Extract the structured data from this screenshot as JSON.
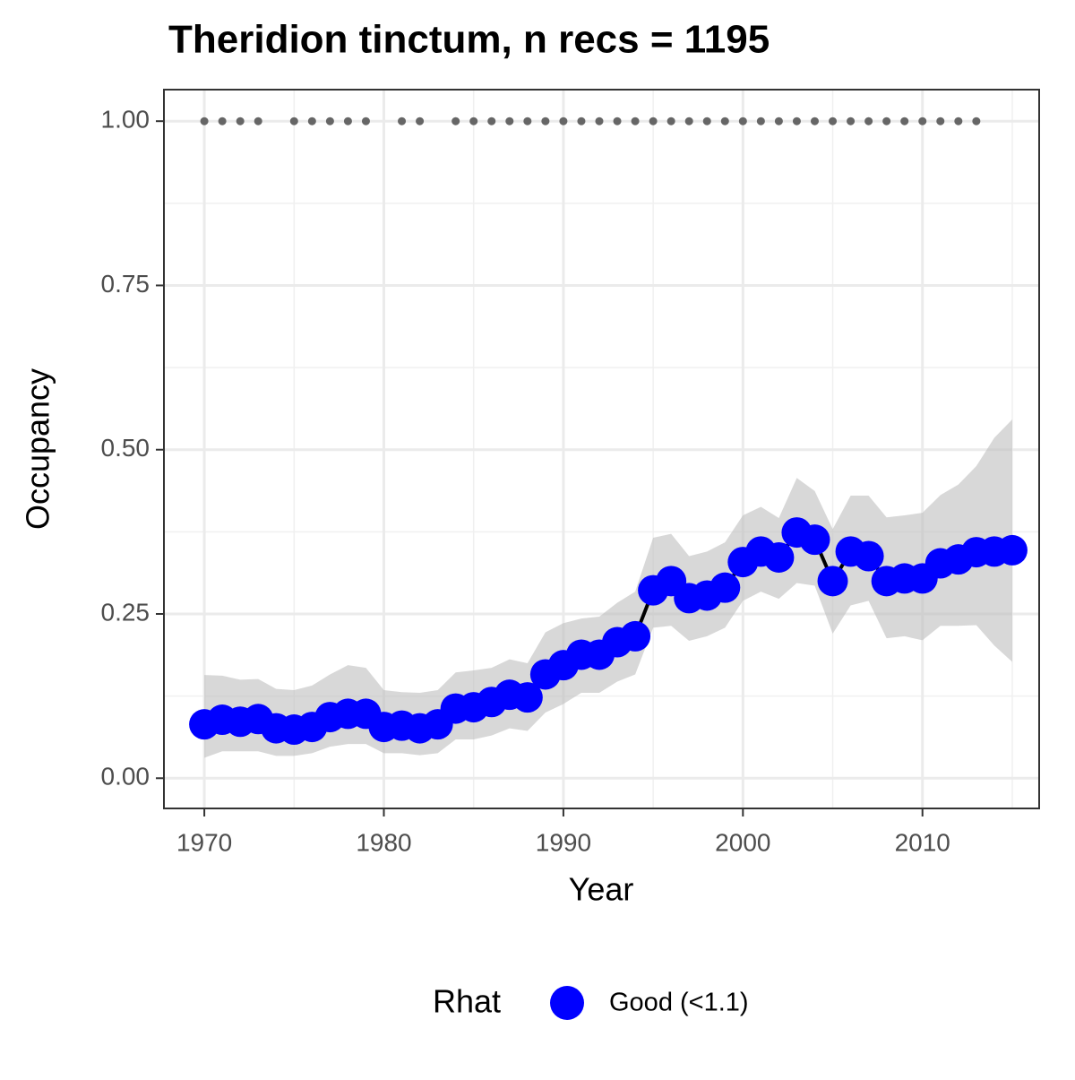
{
  "chart_data": {
    "type": "line",
    "title": "Theridion tinctum, n recs = 1195",
    "x_label": "Year",
    "y_label": "Occupancy",
    "x": [
      1970,
      1971,
      1972,
      1973,
      1974,
      1975,
      1976,
      1977,
      1978,
      1979,
      1980,
      1981,
      1982,
      1983,
      1984,
      1985,
      1986,
      1987,
      1988,
      1989,
      1990,
      1991,
      1992,
      1993,
      1994,
      1995,
      1996,
      1997,
      1998,
      1999,
      2000,
      2001,
      2002,
      2003,
      2004,
      2005,
      2006,
      2007,
      2008,
      2009,
      2010,
      2011,
      2012,
      2013,
      2014,
      2015
    ],
    "series": [
      {
        "name": "Good (<1.1)",
        "color": "#0000ff",
        "line_color": "#000000",
        "values": [
          0.082,
          0.089,
          0.086,
          0.09,
          0.076,
          0.074,
          0.078,
          0.093,
          0.098,
          0.098,
          0.078,
          0.08,
          0.076,
          0.082,
          0.106,
          0.108,
          0.116,
          0.127,
          0.123,
          0.158,
          0.172,
          0.188,
          0.188,
          0.207,
          0.216,
          0.286,
          0.3,
          0.274,
          0.278,
          0.29,
          0.329,
          0.345,
          0.336,
          0.374,
          0.363,
          0.3,
          0.345,
          0.338,
          0.3,
          0.304,
          0.304,
          0.327,
          0.333,
          0.344,
          0.345,
          0.347
        ],
        "upper": [
          0.157,
          0.156,
          0.15,
          0.151,
          0.136,
          0.134,
          0.141,
          0.158,
          0.172,
          0.168,
          0.134,
          0.131,
          0.13,
          0.134,
          0.161,
          0.164,
          0.168,
          0.181,
          0.175,
          0.222,
          0.236,
          0.243,
          0.246,
          0.267,
          0.284,
          0.366,
          0.372,
          0.338,
          0.345,
          0.359,
          0.4,
          0.413,
          0.396,
          0.457,
          0.437,
          0.379,
          0.43,
          0.43,
          0.397,
          0.4,
          0.404,
          0.431,
          0.447,
          0.475,
          0.518,
          0.546
        ],
        "lower": [
          0.031,
          0.041,
          0.041,
          0.041,
          0.034,
          0.034,
          0.038,
          0.048,
          0.052,
          0.052,
          0.038,
          0.038,
          0.035,
          0.038,
          0.059,
          0.059,
          0.065,
          0.076,
          0.072,
          0.1,
          0.113,
          0.13,
          0.13,
          0.147,
          0.158,
          0.229,
          0.232,
          0.209,
          0.216,
          0.229,
          0.27,
          0.284,
          0.273,
          0.297,
          0.293,
          0.22,
          0.263,
          0.27,
          0.213,
          0.216,
          0.21,
          0.232,
          0.232,
          0.233,
          0.202,
          0.177
        ]
      }
    ],
    "band_color": "#bebebe",
    "records": {
      "color": "#666666",
      "x": [
        1970,
        1971,
        1972,
        1973,
        1975,
        1976,
        1977,
        1978,
        1979,
        1981,
        1982,
        1984,
        1985,
        1986,
        1987,
        1988,
        1989,
        1990,
        1991,
        1992,
        1993,
        1994,
        1995,
        1996,
        1997,
        1998,
        1999,
        2000,
        2001,
        2002,
        2003,
        2004,
        2005,
        2006,
        2007,
        2008,
        2009,
        2010,
        2011,
        2012,
        2013
      ],
      "values": [
        1,
        1,
        1,
        1,
        1,
        1,
        1,
        1,
        1,
        1,
        1,
        1,
        1,
        1,
        1,
        1,
        1,
        1,
        1,
        1,
        1,
        1,
        1,
        1,
        1,
        1,
        1,
        1,
        1,
        1,
        1,
        1,
        1,
        1,
        1,
        1,
        1,
        1,
        1,
        1,
        1
      ]
    },
    "legend_title": "Rhat",
    "legend": "bottom",
    "grid": true,
    "xlim": [
      1967.75,
      2016.5
    ],
    "xticks": [
      1970,
      1980,
      1990,
      2000,
      2010
    ],
    "x_minor_grid": [
      1975,
      1985,
      1995,
      2005,
      2015
    ],
    "ylim": [
      -0.046,
      1.048
    ],
    "yticks": [
      {
        "value": 0,
        "label": "0.00"
      },
      {
        "value": 0.25,
        "label": "0.25"
      },
      {
        "value": 0.5,
        "label": "0.50"
      },
      {
        "value": 0.75,
        "label": "0.75"
      },
      {
        "value": 1,
        "label": "1.00"
      }
    ],
    "y_minor_grid": [
      0.125,
      0.375,
      0.625,
      0.875
    ]
  }
}
